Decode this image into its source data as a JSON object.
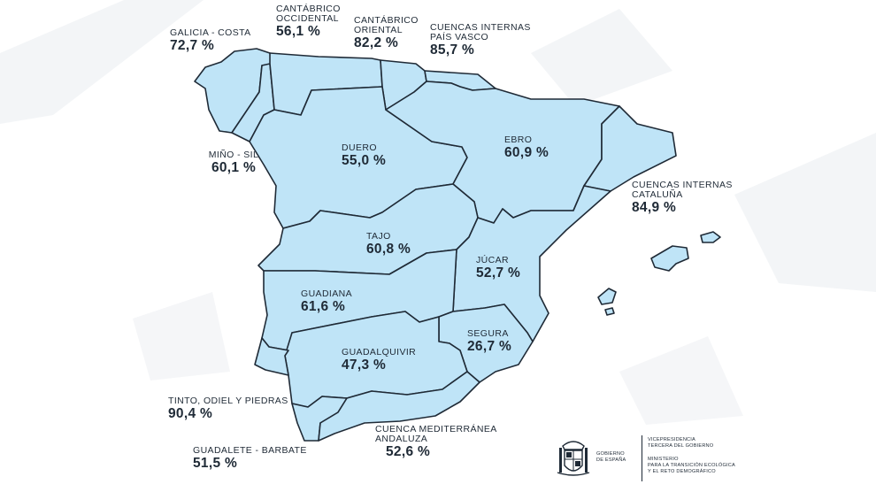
{
  "colors": {
    "region_fill": "#bfe4f7",
    "border": "#1f2a36",
    "background_shapes": "#f2f4f6"
  },
  "regions": {
    "galicia_costa": {
      "name": "GALICIA - COSTA",
      "value": "72,7 %"
    },
    "cantabrico_occidental": {
      "name1": "CANTÁBRICO",
      "name2": "OCCIDENTAL",
      "value": "56,1 %"
    },
    "cantabrico_oriental": {
      "name1": "CANTÁBRICO",
      "name2": "ORIENTAL",
      "value": "82,2 %"
    },
    "pais_vasco": {
      "name1": "CUENCAS INTERNAS",
      "name2": "PAÍS VASCO",
      "value": "85,7 %"
    },
    "mino_sil": {
      "name": "MIÑO - SIL",
      "value": "60,1 %"
    },
    "duero": {
      "name": "DUERO",
      "value": "55,0 %"
    },
    "ebro": {
      "name": "EBRO",
      "value": "60,9 %"
    },
    "cataluna": {
      "name1": "CUENCAS INTERNAS",
      "name2": "CATALUÑA",
      "value": "84,9 %"
    },
    "tajo": {
      "name": "TAJO",
      "value": "60,8 %"
    },
    "jucar": {
      "name": "JÚCAR",
      "value": "52,7 %"
    },
    "guadiana": {
      "name": "GUADIANA",
      "value": "61,6 %"
    },
    "segura": {
      "name": "SEGURA",
      "value": "26,7 %"
    },
    "guadalquivir": {
      "name": "GUADALQUIVIR",
      "value": "47,3 %"
    },
    "tinto": {
      "name": "TINTO, ODIEL Y PIEDRAS",
      "value": "90,4 %"
    },
    "guadalete": {
      "name": "GUADALETE - BARBATE",
      "value": "51,5 %"
    },
    "mediterranea_andaluza": {
      "name1": "CUENCA MEDITERRÁNEA",
      "name2": "ANDALUZA",
      "value": "52,6 %"
    }
  },
  "footer": {
    "gobierno": [
      "GOBIERNO",
      "DE ESPAÑA"
    ],
    "vicepresidencia": [
      "VICEPRESIDENCIA",
      "TERCERA DEL GOBIERNO"
    ],
    "ministerio": [
      "MINISTERIO",
      "PARA LA TRANSICIÓN ECOLÓGICA",
      "Y EL RETO DEMOGRÁFICO"
    ],
    "icon": "coat-of-arms-icon"
  }
}
